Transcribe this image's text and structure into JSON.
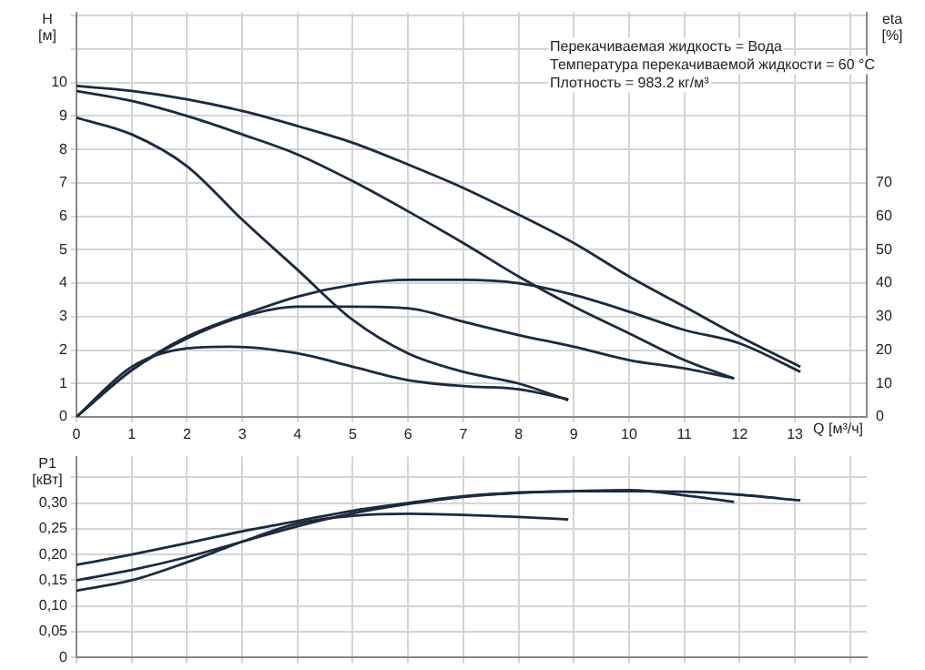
{
  "chart_data": [
    {
      "type": "line",
      "xlabel": "Q [м³/ч]",
      "ylabel": "H [м]",
      "y2label": "eta [%]",
      "annotations": [
        "Перекачиваемая жидкость = Вода",
        "Температура перекачиваемой жидкости = 60 °C",
        "Плотность = 983.2 кг/м³"
      ],
      "xlim": [
        0,
        14.3
      ],
      "xticks": [
        0,
        1,
        2,
        3,
        4,
        5,
        6,
        7,
        8,
        9,
        10,
        11,
        12,
        13,
        {
          "value": 14,
          "label": null
        }
      ],
      "ylim": [
        0,
        12.1
      ],
      "yticks": [
        0,
        1,
        2,
        3,
        4,
        5,
        6,
        7,
        8,
        9,
        10,
        {
          "value": 11,
          "label": null
        },
        {
          "value": 12,
          "label": null
        }
      ],
      "y2lim": [
        0,
        121
      ],
      "y2ticks": [
        0,
        10,
        20,
        30,
        40,
        50,
        60,
        70
      ],
      "grid": true,
      "line_style": "solid",
      "marker": "none",
      "series": [
        {
          "type": "line",
          "color": "#1a2a40",
          "axis": "y",
          "x": [
            0,
            1,
            2,
            3,
            4,
            5,
            6,
            7,
            8,
            9,
            10,
            11,
            12,
            13.1
          ],
          "values": [
            9.9,
            9.75,
            9.5,
            9.15,
            8.7,
            8.2,
            7.55,
            6.85,
            6.05,
            5.2,
            4.2,
            3.3,
            2.4,
            1.5
          ]
        },
        {
          "type": "line",
          "color": "#1a2a40",
          "axis": "y",
          "x": [
            0,
            1,
            2,
            3,
            4,
            5,
            6,
            7,
            8,
            9,
            10,
            11,
            11.9
          ],
          "values": [
            9.75,
            9.45,
            9.0,
            8.45,
            7.85,
            7.05,
            6.15,
            5.2,
            4.2,
            3.3,
            2.5,
            1.7,
            1.15
          ]
        },
        {
          "type": "line",
          "color": "#1a2a40",
          "axis": "y",
          "x": [
            0,
            1,
            2,
            3,
            4,
            5,
            6,
            7,
            8,
            8.9
          ],
          "values": [
            8.95,
            8.45,
            7.5,
            5.9,
            4.4,
            2.9,
            1.9,
            1.35,
            1.0,
            0.5
          ]
        },
        {
          "type": "line",
          "color": "#1a2a40",
          "axis": "y2",
          "x": [
            0,
            1,
            2,
            3,
            4,
            5,
            6,
            7,
            8,
            9,
            10,
            11,
            12,
            13.1
          ],
          "values": [
            0,
            14,
            24,
            30.5,
            36,
            39.5,
            41,
            41,
            40,
            36.5,
            31.5,
            26,
            22,
            13.5
          ]
        },
        {
          "type": "line",
          "color": "#1a2a40",
          "axis": "y2",
          "x": [
            0,
            1,
            2,
            3,
            4,
            5,
            6,
            7,
            8,
            9,
            10,
            11,
            11.9
          ],
          "values": [
            0,
            14,
            23.5,
            30,
            33,
            33,
            32.5,
            28.5,
            24.5,
            21,
            17,
            14.5,
            11.5
          ]
        },
        {
          "type": "line",
          "color": "#1a2a40",
          "axis": "y2",
          "x": [
            0,
            1,
            2,
            2.8,
            4,
            5,
            6,
            7,
            8,
            8.9
          ],
          "values": [
            0,
            15,
            20.5,
            21,
            19,
            15,
            11,
            9.2,
            8.3,
            5.3
          ]
        }
      ]
    },
    {
      "type": "line",
      "ylabel": "P1 [кВт]",
      "tick_labels": "y",
      "xlim": [
        0,
        14.3
      ],
      "xticks": [
        0,
        1,
        2,
        3,
        4,
        5,
        6,
        7,
        8,
        9,
        10,
        11,
        12,
        13,
        14
      ],
      "ylim": [
        0,
        0.39
      ],
      "yticks": [
        {
          "value": 0,
          "label": "0"
        },
        {
          "value": 0.05,
          "label": "0,05"
        },
        {
          "value": 0.1,
          "label": "0,10"
        },
        {
          "value": 0.15,
          "label": "0,15"
        },
        {
          "value": 0.2,
          "label": "0,20"
        },
        {
          "value": 0.25,
          "label": "0,25"
        },
        {
          "value": 0.3,
          "label": "0,30"
        },
        {
          "value": 0.35,
          "label": null
        }
      ],
      "grid": true,
      "line_style": "solid",
      "marker": "none",
      "series": [
        {
          "type": "line",
          "color": "#1a2a40",
          "x": [
            0,
            1,
            2,
            3,
            4,
            5,
            6,
            7,
            8,
            9,
            10,
            11,
            12,
            13.1
          ],
          "values": [
            0.18,
            0.2,
            0.222,
            0.245,
            0.265,
            0.285,
            0.3,
            0.313,
            0.32,
            0.323,
            0.323,
            0.322,
            0.316,
            0.305
          ]
        },
        {
          "type": "line",
          "color": "#1a2a40",
          "x": [
            0,
            1,
            2,
            3,
            4,
            5,
            6,
            7,
            8,
            9,
            10,
            11,
            11.9
          ],
          "values": [
            0.15,
            0.17,
            0.195,
            0.225,
            0.255,
            0.28,
            0.298,
            0.312,
            0.32,
            0.323,
            0.325,
            0.315,
            0.302
          ]
        },
        {
          "type": "line",
          "color": "#1a2a40",
          "x": [
            0,
            1,
            2,
            3,
            4,
            5,
            6,
            7,
            8,
            8.9
          ],
          "values": [
            0.13,
            0.15,
            0.185,
            0.225,
            0.26,
            0.275,
            0.279,
            0.277,
            0.273,
            0.268
          ]
        }
      ]
    }
  ]
}
